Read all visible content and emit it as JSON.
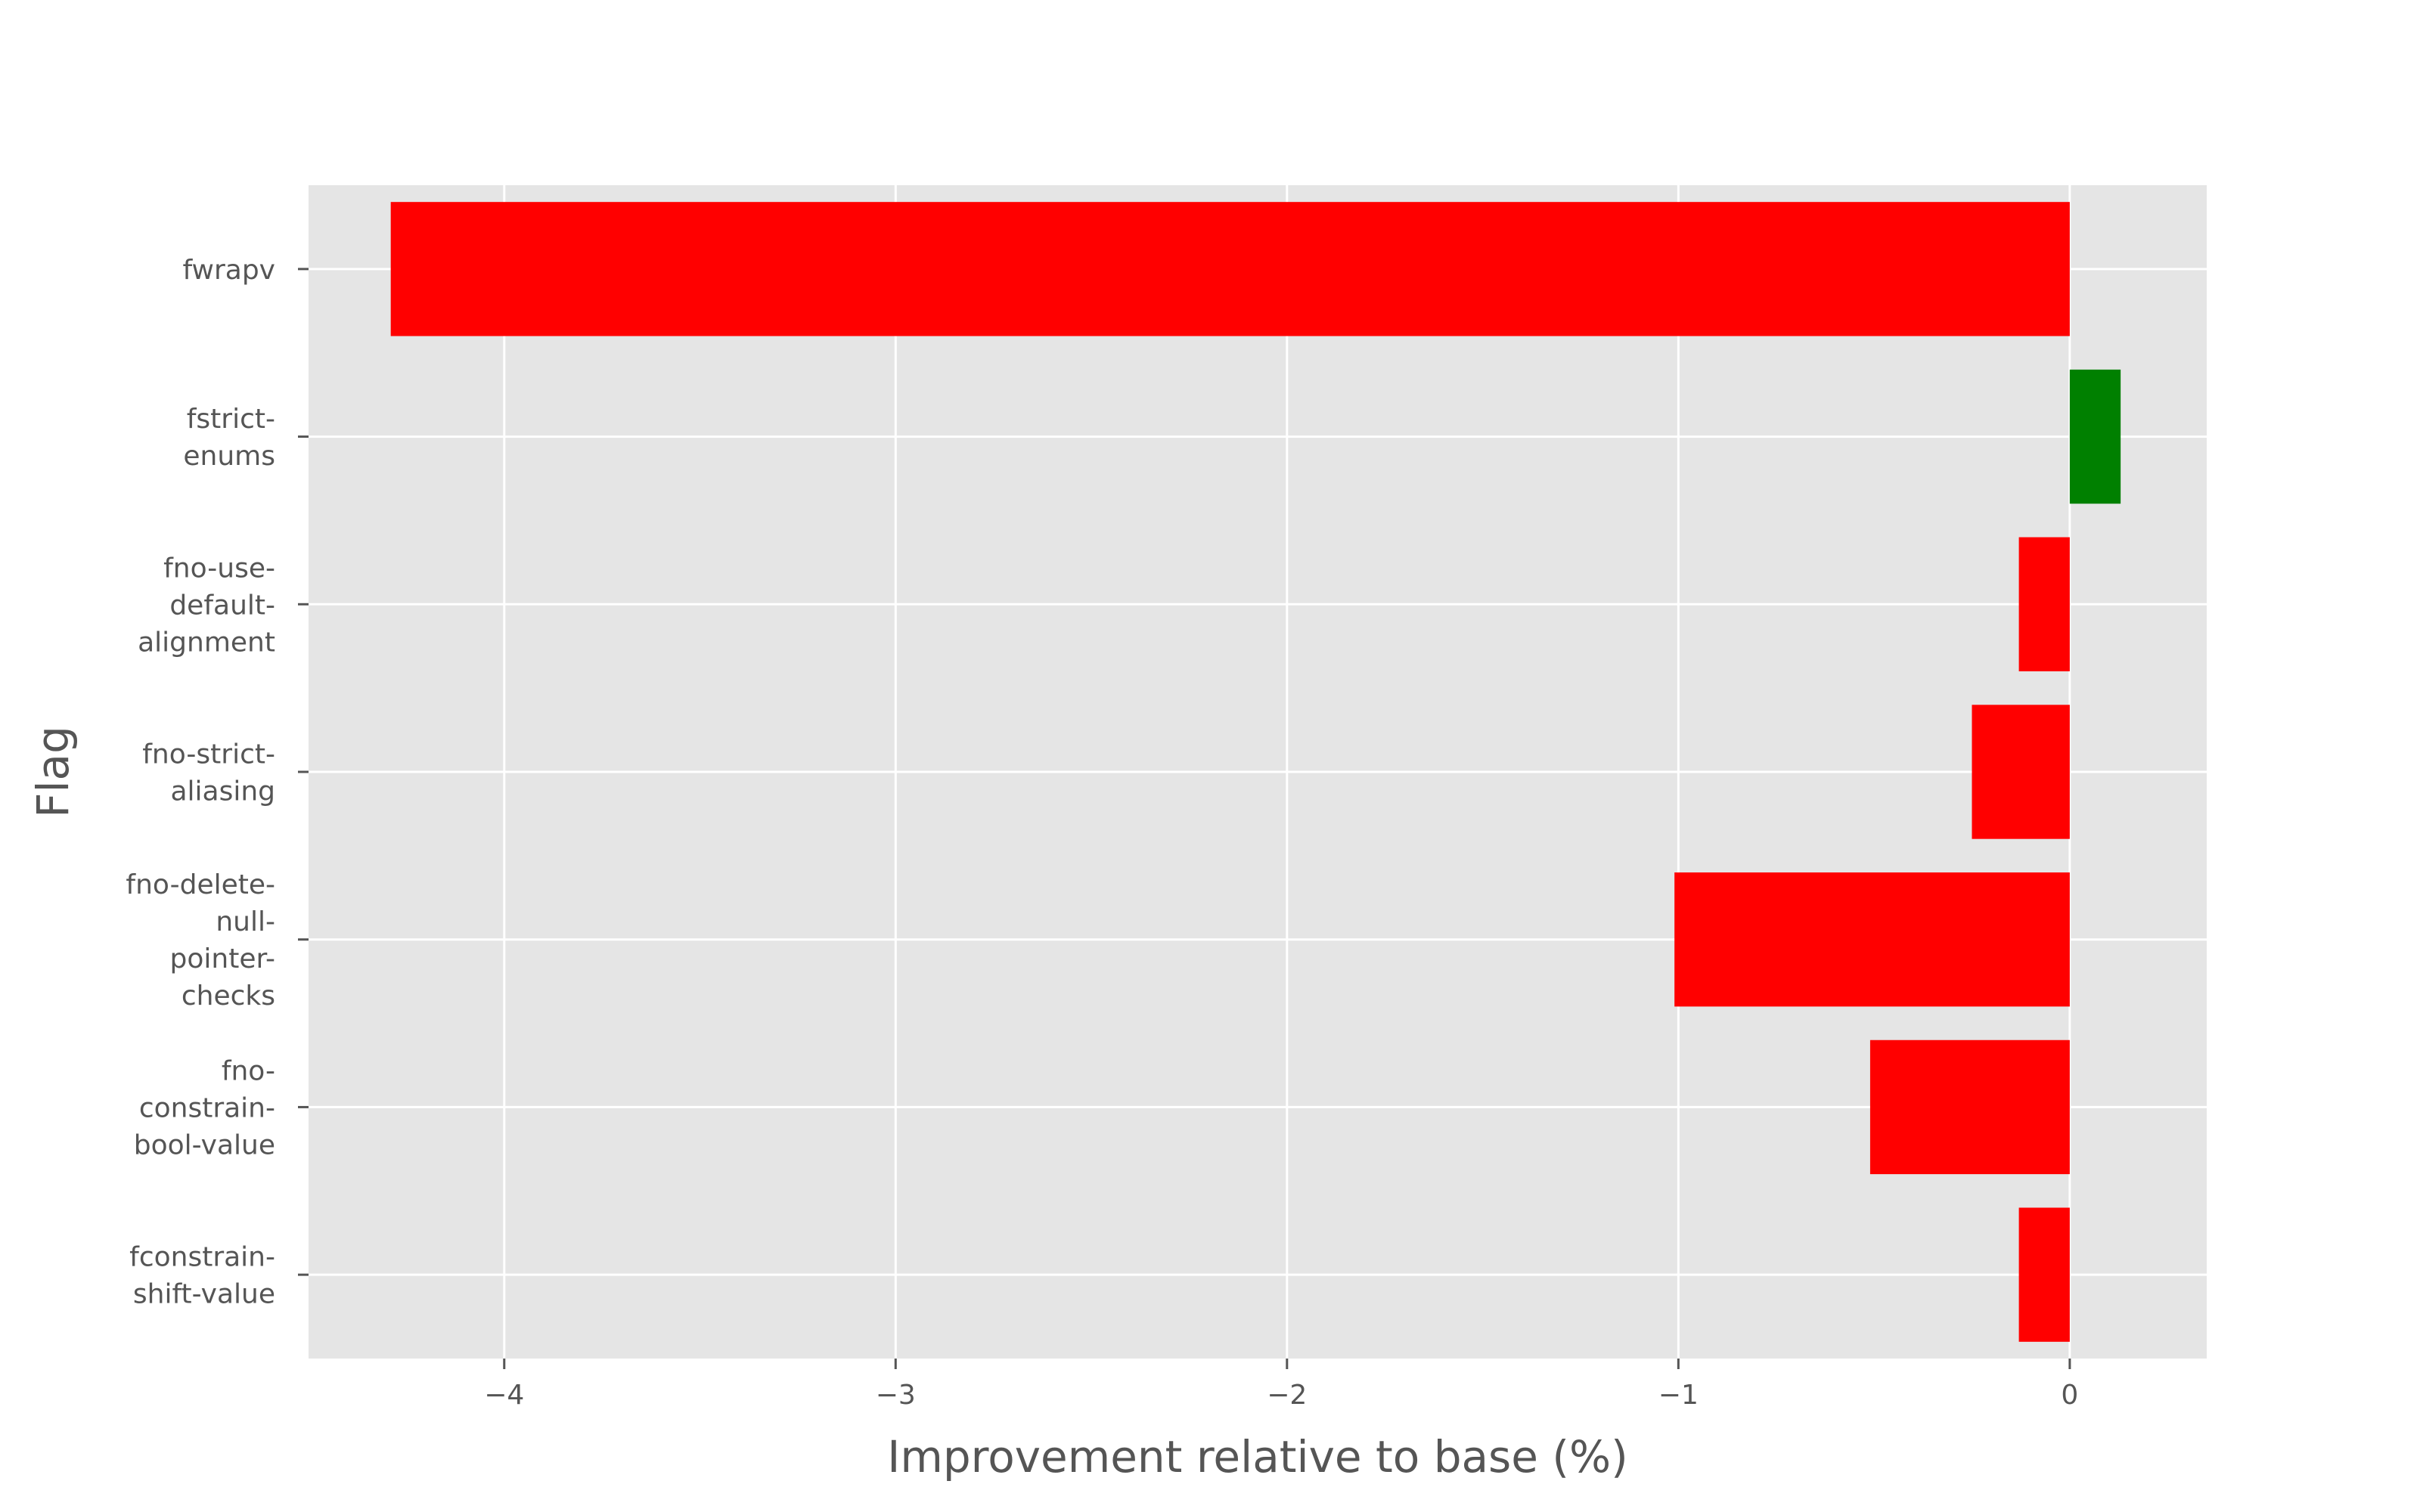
{
  "chart_data": {
    "type": "bar",
    "orientation": "horizontal",
    "xlabel": "Improvement relative to base (%)",
    "ylabel": "Flag",
    "xlim": [
      -4.5,
      0.35
    ],
    "xticks": [
      -4,
      -3,
      -2,
      -1,
      0
    ],
    "xtick_labels": [
      "−4",
      "−3",
      "−2",
      "−1",
      "0"
    ],
    "grid": true,
    "categories": [
      [
        "fwrapv"
      ],
      [
        "fstrict-",
        "enums"
      ],
      [
        "fno-use-",
        "default-",
        "alignment"
      ],
      [
        "fno-strict-",
        "aliasing"
      ],
      [
        "fno-delete-",
        "null-",
        "pointer-",
        "checks"
      ],
      [
        "fno-",
        "constrain-",
        "bool-value"
      ],
      [
        "fconstrain-",
        "shift-value"
      ]
    ],
    "values": [
      -4.29,
      0.13,
      -0.13,
      -0.25,
      -1.01,
      -0.51,
      -0.13
    ],
    "colors": {
      "negative": "#ff0000",
      "positive": "#008000",
      "plot_background": "#e5e5e5",
      "grid": "#ffffff",
      "text": "#555555"
    }
  }
}
